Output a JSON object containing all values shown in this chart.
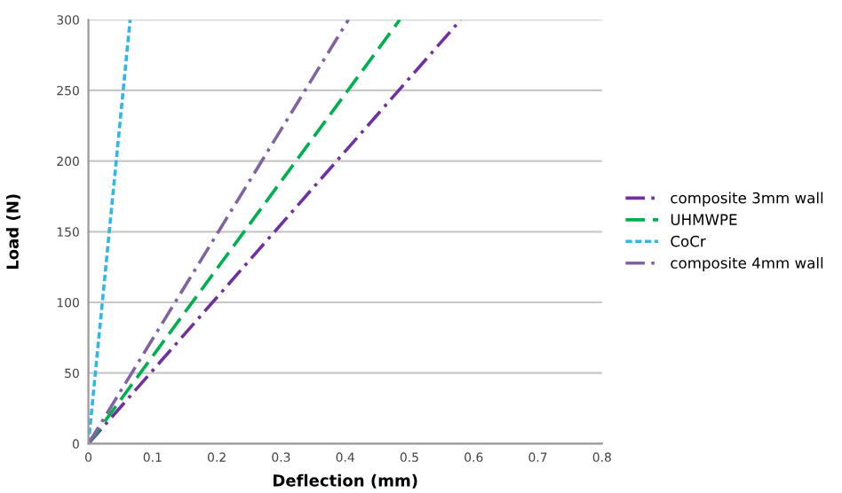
{
  "chart_data": {
    "type": "line",
    "xlabel": "Deflection (mm)",
    "ylabel": "Load (N)",
    "xlim": [
      0,
      0.8
    ],
    "xticks": [
      0,
      0.1,
      0.2,
      0.3,
      0.4,
      0.5,
      0.6,
      0.7,
      0.8
    ],
    "ylim": [
      0,
      300
    ],
    "yticks": [
      0,
      50,
      100,
      150,
      200,
      250,
      300
    ],
    "grid": "y",
    "legend": "right",
    "marker": "none",
    "series": [
      {
        "name": "composite 3mm wall",
        "color": "#7030a0",
        "line_style": "dashdot",
        "x": [
          0,
          0.58
        ],
        "values": [
          0,
          300
        ]
      },
      {
        "name": "UHMWPE",
        "color": "#00b050",
        "line_style": "dashed",
        "x": [
          0,
          0.485
        ],
        "values": [
          0,
          300
        ]
      },
      {
        "name": "CoCr",
        "color": "#31b6e7",
        "line_style": "dotted",
        "x": [
          0,
          0.065
        ],
        "values": [
          0,
          300
        ]
      },
      {
        "name": "composite 4mm wall",
        "color": "#8064a2",
        "line_style": "dashdot",
        "x": [
          0,
          0.405
        ],
        "values": [
          0,
          300
        ]
      }
    ]
  }
}
